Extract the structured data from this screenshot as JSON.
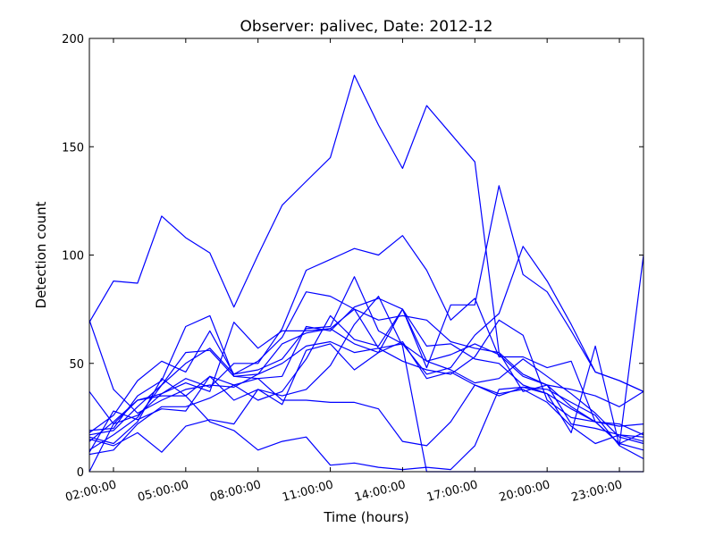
{
  "chart_data": {
    "type": "line",
    "title": "Observer: palivec, Date: 2012-12",
    "xlabel": "Time (hours)",
    "ylabel": "Detection count",
    "x": [
      1,
      2,
      3,
      4,
      5,
      6,
      7,
      8,
      9,
      10,
      11,
      12,
      13,
      14,
      15,
      16,
      17,
      18,
      19,
      20,
      21,
      22,
      23,
      24
    ],
    "x_unit": "hour of day",
    "xlim": [
      1,
      24
    ],
    "ylim": [
      0,
      200
    ],
    "x_ticks": [
      {
        "value": 2,
        "label": "02:00:00"
      },
      {
        "value": 5,
        "label": "05:00:00"
      },
      {
        "value": 8,
        "label": "08:00:00"
      },
      {
        "value": 11,
        "label": "11:00:00"
      },
      {
        "value": 14,
        "label": "14:00:00"
      },
      {
        "value": 17,
        "label": "17:00:00"
      },
      {
        "value": 20,
        "label": "20:00:00"
      },
      {
        "value": 23,
        "label": "23:00:00"
      }
    ],
    "y_ticks": [
      {
        "value": 0,
        "label": "0"
      },
      {
        "value": 50,
        "label": "50"
      },
      {
        "value": 100,
        "label": "100"
      },
      {
        "value": 150,
        "label": "150"
      },
      {
        "value": 200,
        "label": "200"
      }
    ],
    "grid": false,
    "legend": "none",
    "line_color": "#0000ff",
    "series": [
      {
        "values": [
          69,
          88,
          87,
          118,
          108,
          101,
          76,
          100,
          123,
          134,
          145,
          183,
          160,
          140,
          169,
          156,
          143,
          55,
          37,
          40,
          30,
          23,
          13,
          18
        ]
      },
      {
        "values": [
          70,
          38,
          27,
          33,
          38,
          40,
          39,
          45,
          59,
          64,
          66,
          75,
          70,
          72,
          70,
          60,
          57,
          55,
          45,
          40,
          38,
          35,
          30,
          37
        ]
      },
      {
        "values": [
          37,
          22,
          26,
          36,
          43,
          39,
          50,
          50,
          66,
          93,
          98,
          103,
          100,
          109,
          93,
          70,
          80,
          53,
          53,
          48,
          51,
          23,
          21,
          22
        ]
      },
      {
        "values": [
          18,
          26,
          42,
          51,
          46,
          65,
          45,
          47,
          52,
          66,
          67,
          90,
          65,
          59,
          45,
          48,
          63,
          73,
          104,
          88,
          68,
          46,
          42,
          37
        ]
      },
      {
        "values": [
          19,
          20,
          35,
          42,
          67,
          72,
          44,
          43,
          44,
          67,
          65,
          76,
          80,
          75,
          48,
          77,
          77,
          132,
          91,
          83,
          65,
          46,
          42,
          37
        ]
      },
      {
        "values": [
          10,
          17,
          25,
          40,
          55,
          56,
          44,
          45,
          50,
          58,
          60,
          55,
          57,
          51,
          47,
          45,
          53,
          70,
          63,
          33,
          25,
          23,
          22,
          17
        ]
      },
      {
        "values": [
          17,
          19,
          30,
          40,
          50,
          57,
          45,
          51,
          62,
          83,
          81,
          75,
          57,
          59,
          51,
          47,
          41,
          43,
          52,
          44,
          36,
          27,
          16,
          13
        ]
      },
      {
        "values": [
          14,
          23,
          33,
          36,
          41,
          37,
          69,
          57,
          65,
          65,
          66,
          59,
          55,
          75,
          58,
          59,
          52,
          50,
          40,
          36,
          29,
          23,
          13,
          10
        ]
      },
      {
        "values": [
          8,
          10,
          22,
          30,
          30,
          34,
          40,
          33,
          37,
          52,
          72,
          61,
          58,
          75,
          51,
          54,
          59,
          54,
          44,
          40,
          22,
          20,
          17,
          16
        ]
      },
      {
        "values": [
          9,
          28,
          24,
          29,
          28,
          44,
          33,
          38,
          31,
          56,
          59,
          47,
          55,
          60,
          43,
          46,
          40,
          36,
          38,
          32,
          21,
          13,
          17,
          14
        ]
      },
      {
        "values": [
          16,
          13,
          23,
          43,
          35,
          44,
          40,
          43,
          33,
          33,
          32,
          32,
          29,
          14,
          12,
          23,
          40,
          35,
          39,
          38,
          32,
          26,
          12,
          6
        ]
      },
      {
        "values": [
          0,
          22,
          33,
          35,
          35,
          23,
          19,
          10,
          14,
          16,
          3,
          4,
          2,
          1,
          2,
          1,
          12,
          38,
          39,
          36,
          18,
          58,
          12,
          100
        ]
      },
      {
        "values": [
          15,
          12,
          18,
          9,
          21,
          24,
          22,
          38,
          35,
          38,
          49,
          68,
          81,
          58,
          0,
          0,
          0,
          0,
          0,
          0,
          0,
          0,
          0,
          0
        ]
      }
    ]
  }
}
